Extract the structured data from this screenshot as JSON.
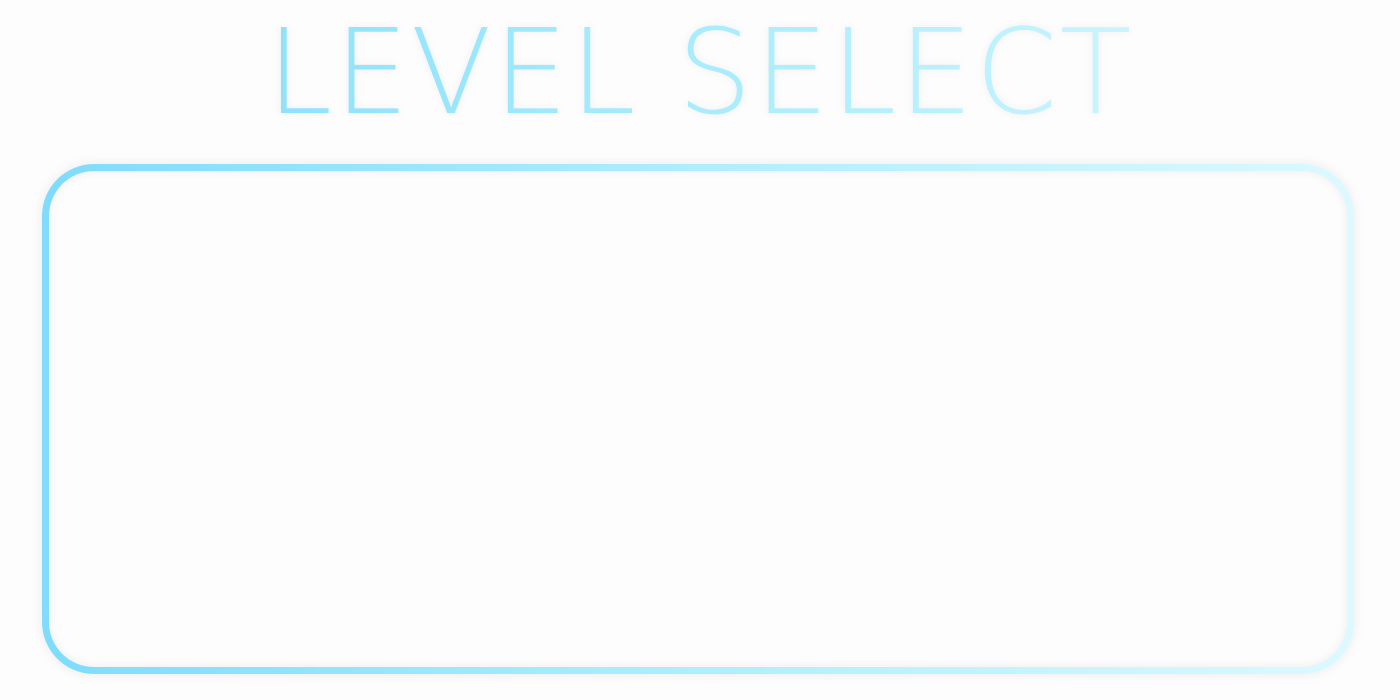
{
  "title": "LEVEL SELECT",
  "colors": {
    "accent_start": "#7fdcfc",
    "accent_mid": "#aeeefd",
    "accent_end": "#dcf9ff",
    "background": "#fdfdfd"
  },
  "levels": []
}
